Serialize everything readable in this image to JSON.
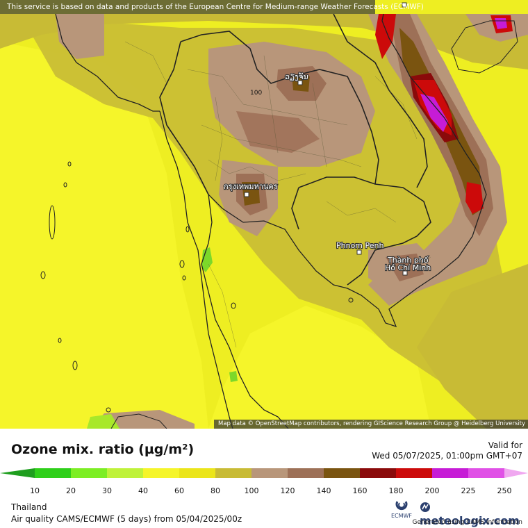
{
  "attribution_top": "This service is based on data and products of the European Centre for Medium-range Weather Forecasts (ECMWF)",
  "attribution_bottom": "Map data © OpenStreetMap contributors, rendering GIScience Research Group @ Heidelberg University",
  "variable_title": "Ozone mix. ratio (µg/m²)",
  "valid_label": "Valid for",
  "valid_time": "Wed 05/07/2025, 01:00pm GMT+07",
  "region": "Thailand",
  "run_info": "Air quality CAMS/ECMWF (5 days) from 05/04/2025/00z",
  "brand": "meteologix.com",
  "ecmwf_label": "ECMWF",
  "generated": "Generated using CAMS information",
  "map_labels": {
    "bangkok": "กรุงเทพมหานคร",
    "vientiane": "ວຽງຈັນ",
    "phnom_penh": "Phnom Penh",
    "hcmc_line1": "Thành phố",
    "hcmc_line2": "Hồ Chí Minh",
    "km_marker": "100"
  },
  "scale": {
    "ticks": [
      10,
      20,
      30,
      40,
      60,
      80,
      100,
      120,
      140,
      160,
      180,
      200,
      225,
      250
    ],
    "colors": [
      "#1f9e1f",
      "#2fcf1a",
      "#7cee24",
      "#bff23a",
      "#f5f52a",
      "#ebe51a",
      "#c8bb35",
      "#b8967a",
      "#9d7057",
      "#7a5410",
      "#8a0a0a",
      "#cc0a0a",
      "#c61cd6",
      "#e050e6",
      "#f0a8f0"
    ]
  },
  "colors": {
    "base": "#eeee22",
    "yellow_light": "#f5f52a",
    "olive": "#c8bb35",
    "brown_light": "#b8967a",
    "brown": "#9d7057",
    "brown_dark": "#7a5410",
    "red_dark": "#8a0a0a",
    "red": "#cc0a0a",
    "magenta": "#c61cd6",
    "green": "#7cd82a"
  }
}
